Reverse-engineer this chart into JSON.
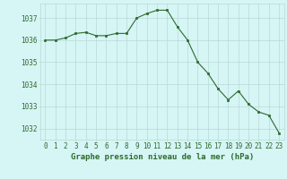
{
  "x": [
    0,
    1,
    2,
    3,
    4,
    5,
    6,
    7,
    8,
    9,
    10,
    11,
    12,
    13,
    14,
    15,
    16,
    17,
    18,
    19,
    20,
    21,
    22,
    23
  ],
  "y": [
    1036.0,
    1036.0,
    1036.1,
    1036.3,
    1036.35,
    1036.2,
    1036.2,
    1036.3,
    1036.3,
    1037.0,
    1037.2,
    1037.35,
    1037.35,
    1036.6,
    1036.0,
    1035.0,
    1034.5,
    1033.8,
    1033.3,
    1033.7,
    1033.1,
    1032.75,
    1032.6,
    1031.8
  ],
  "line_color": "#2d6a2d",
  "marker": "s",
  "marker_size": 1.8,
  "bg_color": "#d6f5f5",
  "grid_color": "#b8d8d8",
  "xlabel": "Graphe pression niveau de la mer (hPa)",
  "xlabel_fontsize": 6.5,
  "xlabel_fontweight": "bold",
  "xlabel_color": "#2d6a2d",
  "tick_fontsize": 5.5,
  "tick_color": "#2d6a2d",
  "ylim": [
    1031.5,
    1037.65
  ],
  "yticks": [
    1032,
    1033,
    1034,
    1035,
    1036,
    1037
  ],
  "xticks": [
    0,
    1,
    2,
    3,
    4,
    5,
    6,
    7,
    8,
    9,
    10,
    11,
    12,
    13,
    14,
    15,
    16,
    17,
    18,
    19,
    20,
    21,
    22,
    23
  ]
}
